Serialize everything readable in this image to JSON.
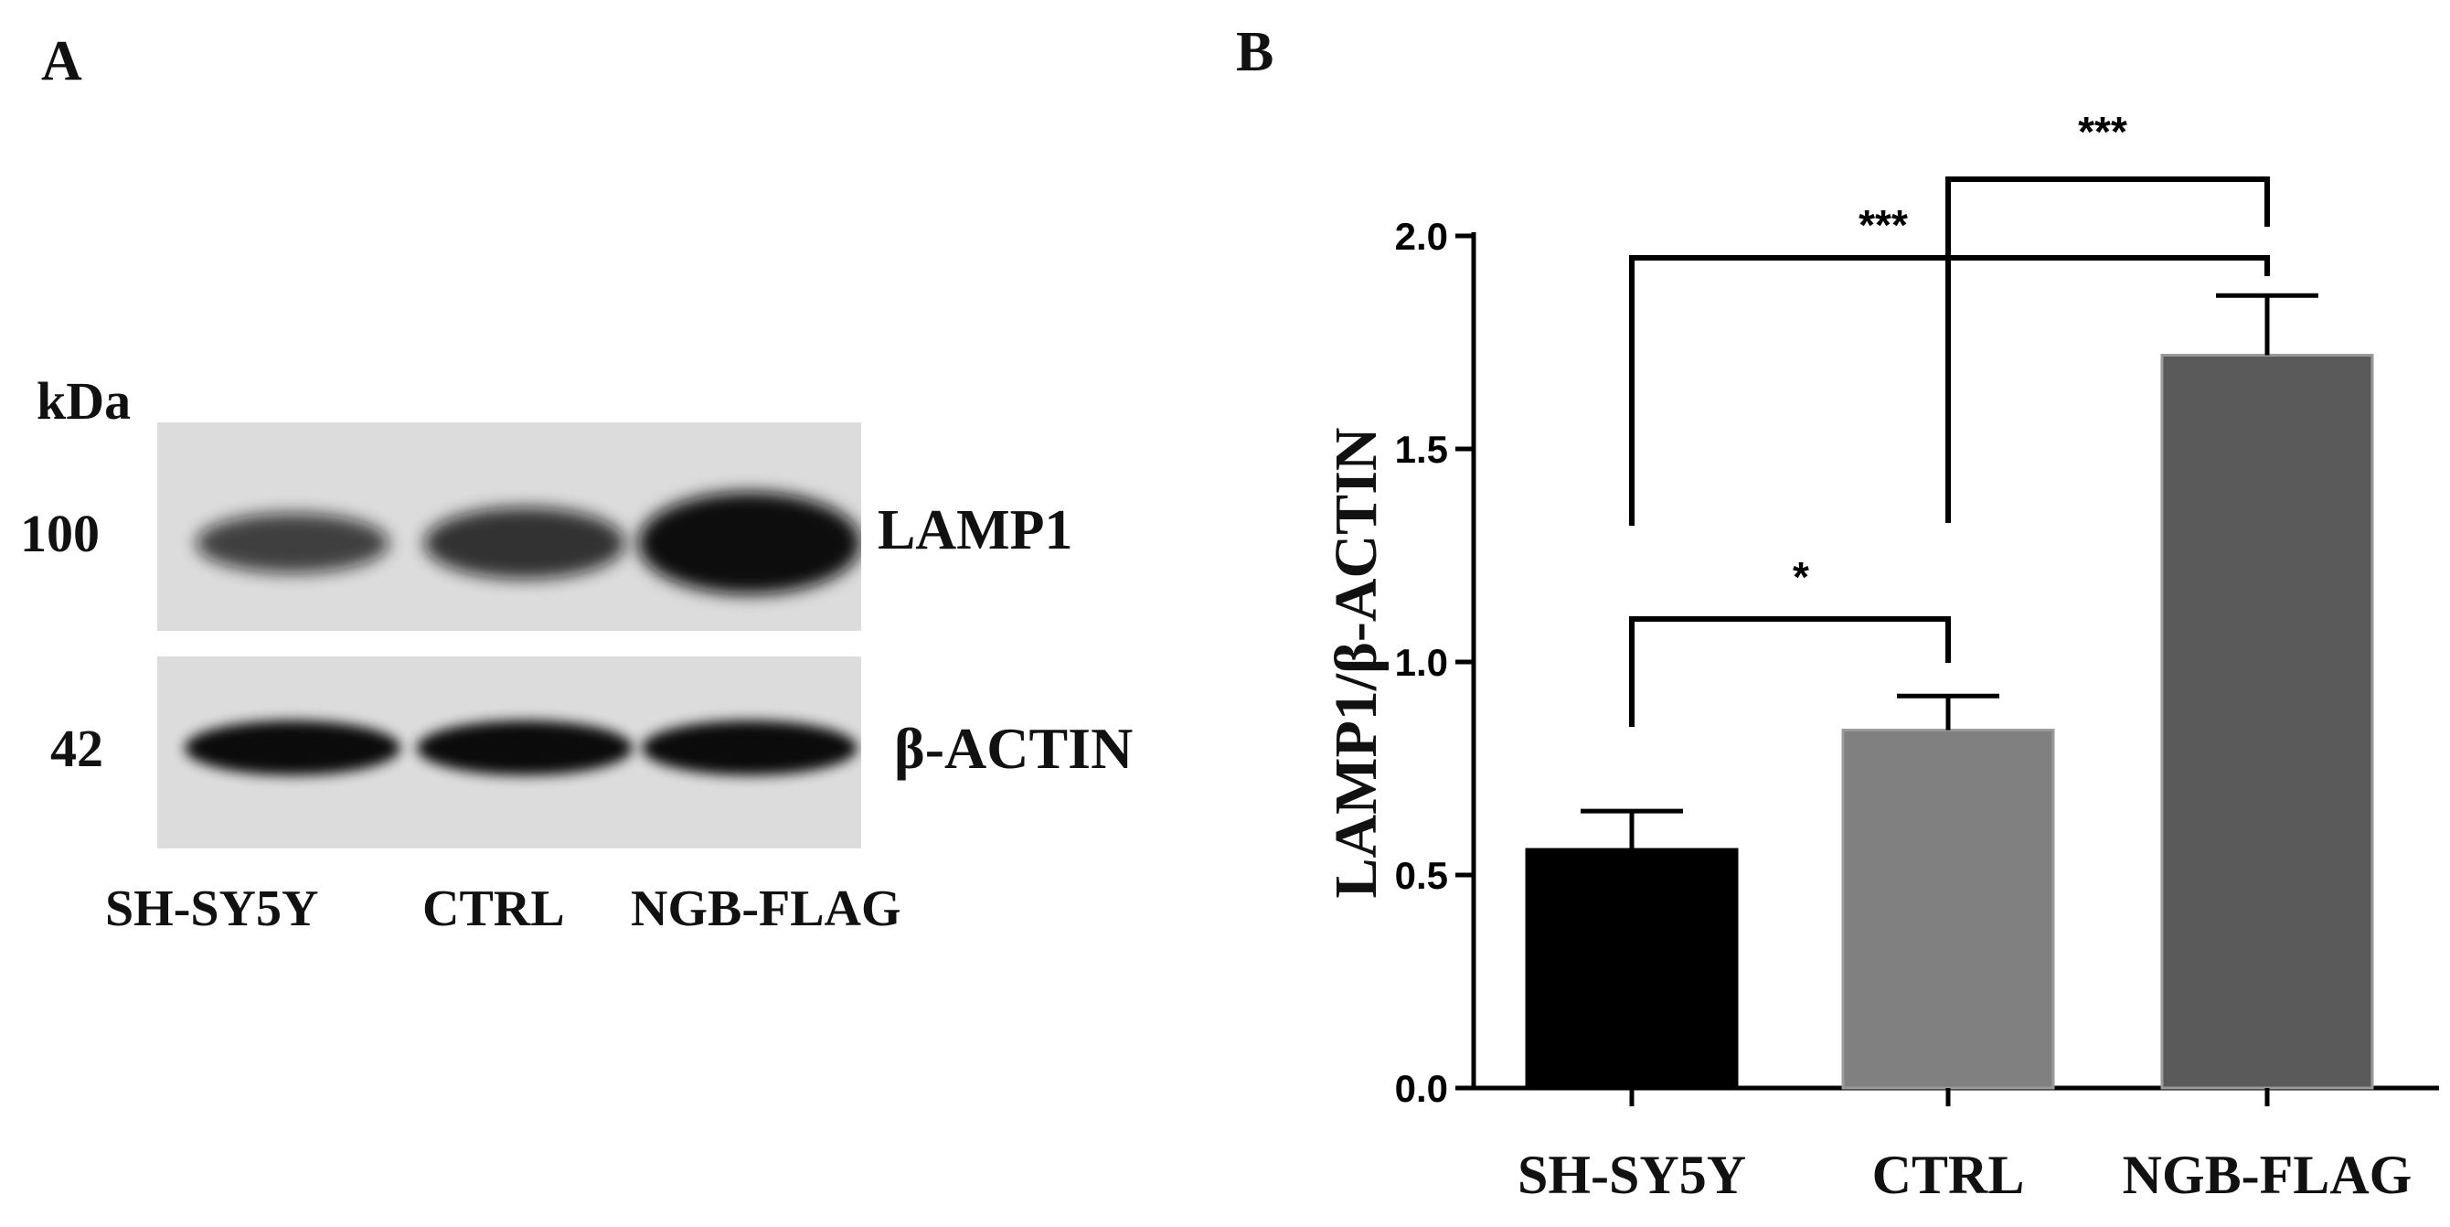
{
  "panel_a": {
    "letter": "A",
    "kda_label": "kDa",
    "markers": [
      "100",
      "42"
    ],
    "band_labels": [
      "LAMP1",
      "β-ACTIN"
    ],
    "lane_labels": [
      "SH-SY5Y",
      "CTRL",
      "NGB-FLAG"
    ],
    "lamp1_intensity": [
      0.45,
      0.6,
      1.0
    ],
    "actin_intensity": [
      1.0,
      1.0,
      1.0
    ]
  },
  "panel_b": {
    "letter": "B"
  },
  "chart_data": {
    "type": "bar",
    "categories": [
      "SH-SY5Y",
      "CTRL",
      "NGB-FLAG"
    ],
    "values": [
      0.56,
      0.84,
      1.72
    ],
    "errors": [
      0.09,
      0.08,
      0.14
    ],
    "colors": [
      "#000000",
      "#808080",
      "#5a5a5a"
    ],
    "ylabel": "LAMP1/β-ACTIN",
    "ylim": [
      0.0,
      2.0
    ],
    "yticks": [
      "0.0",
      "0.5",
      "1.0",
      "1.5",
      "2.0"
    ],
    "significance": [
      {
        "from": 0,
        "to": 1,
        "label": "*"
      },
      {
        "from": 0,
        "to": 2,
        "label": "***"
      },
      {
        "from": 1,
        "to": 2,
        "label": "***"
      }
    ]
  }
}
